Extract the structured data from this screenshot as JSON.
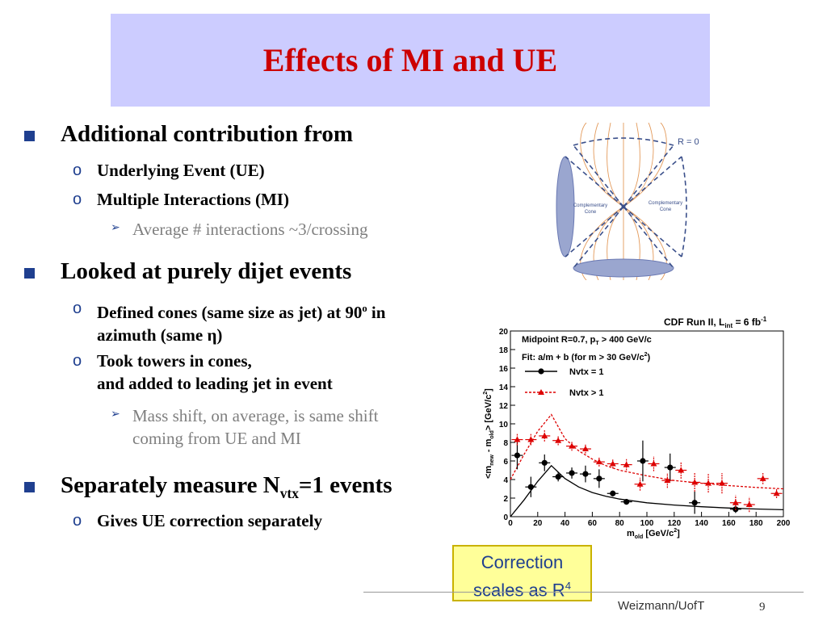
{
  "slide": {
    "title": "Effects of MI and UE",
    "footer": "Weizmann/UofT",
    "page_number": "9"
  },
  "bullets": {
    "b1": {
      "text": "Additional contribution from",
      "sub1": "Underlying Event (UE)",
      "sub2": "Multiple Interactions (MI)",
      "sub2_detail": "Average # interactions ~3/crossing"
    },
    "b2": {
      "text": "Looked at purely dijet events",
      "sub1_a": "Defined cones (same size as jet) at 90",
      "sub1_sup": "o",
      "sub1_b": " in",
      "sub1_line2": "azimuth (same η)",
      "sub2_line1": "Took towers in cones,",
      "sub2_line2": "and added to leading jet in event",
      "detail_line1": "Mass shift, on average, is same shift",
      "detail_line2": "coming from UE and MI"
    },
    "b3": {
      "text_a": "Separately measure N",
      "text_sub": "vtx",
      "text_b": "=1 events",
      "sub1": "Gives UE correction separately"
    }
  },
  "markers": {
    "square": "■",
    "circle": "o",
    "arrow": "➢"
  },
  "cone_diagram": {
    "r_label": "R = 0",
    "left_label_1": "Complementary",
    "left_label_2": "Cone",
    "right_label_1": "Complementary",
    "right_label_2": "Cone"
  },
  "note": {
    "line1": "Correction",
    "line2_a": "scales as R",
    "line2_sup": "4"
  },
  "colors": {
    "title": "#cc0000",
    "title_bg": "#ccccff",
    "bullet_marker": "#1f3f8f",
    "note_bg": "#ffff99",
    "series_black": "#000000",
    "series_red": "#dd0000"
  },
  "chart_data": {
    "type": "scatter",
    "header": "CDF Run II, L",
    "header_sub": "int",
    "header_rest": " = 6 fb",
    "header_sup": "-1",
    "info_line1": "Midpoint R=0.7, p",
    "info_line1_sub": "T",
    "info_line1_rest": " > 400 GeV/c",
    "info_line2": "Fit: a/m + b (for m > 30 GeV/c",
    "info_line2_sup": "2",
    "info_line2_rest": ")",
    "xlabel": "m",
    "xlabel_sub": "old",
    "xlabel_rest": " [GeV/c",
    "xlabel_sup": "2",
    "xlabel_end": "]",
    "ylabel": "<m",
    "ylabel_sub1": "new",
    "ylabel_mid": " - m",
    "ylabel_sub2": "old",
    "ylabel_rest": "> [GeV/c",
    "ylabel_sup": "2",
    "ylabel_end": "]",
    "xlim": [
      0,
      200
    ],
    "ylim": [
      0,
      20
    ],
    "xticks": [
      "0",
      "20",
      "40",
      "60",
      "80",
      "100",
      "120",
      "140",
      "160",
      "180",
      "200"
    ],
    "yticks": [
      "0",
      "2",
      "4",
      "6",
      "8",
      "10",
      "12",
      "14",
      "16",
      "18",
      "20"
    ],
    "legend_position": "top-left",
    "series": [
      {
        "name": "Nvtx = 1",
        "color": "#000000",
        "marker": "circle",
        "points": [
          {
            "x": 5,
            "y": 6.6,
            "ey": 1.5
          },
          {
            "x": 15,
            "y": 3.2,
            "ey": 1.1
          },
          {
            "x": 25,
            "y": 5.8,
            "ey": 0.9
          },
          {
            "x": 35,
            "y": 4.3,
            "ey": 0.5
          },
          {
            "x": 45,
            "y": 4.7,
            "ey": 0.6
          },
          {
            "x": 55,
            "y": 4.6,
            "ey": 0.9
          },
          {
            "x": 65,
            "y": 4.1,
            "ey": 1.0
          },
          {
            "x": 75,
            "y": 2.5,
            "ey": 0.3
          },
          {
            "x": 85,
            "y": 1.6,
            "ey": 0.3
          },
          {
            "x": 97,
            "y": 6.0,
            "ey": 2.2
          },
          {
            "x": 117,
            "y": 5.3,
            "ey": 1.5
          },
          {
            "x": 135,
            "y": 1.5,
            "ey": 1.2
          },
          {
            "x": 165,
            "y": 0.8,
            "ey": 0.4
          }
        ],
        "fit": [
          [
            0,
            0
          ],
          [
            10,
            1.8
          ],
          [
            20,
            3.8
          ],
          [
            30,
            5.5
          ],
          [
            40,
            4.1
          ],
          [
            50,
            3.2
          ],
          [
            60,
            2.6
          ],
          [
            70,
            2.2
          ],
          [
            80,
            1.9
          ],
          [
            100,
            1.5
          ],
          [
            120,
            1.25
          ],
          [
            140,
            1.07
          ],
          [
            160,
            0.93
          ],
          [
            180,
            0.83
          ],
          [
            200,
            0.75
          ]
        ]
      },
      {
        "name": "Nvtx > 1",
        "color": "#dd0000",
        "marker": "triangle",
        "points": [
          {
            "x": 5,
            "y": 8.3,
            "ey": 0.6
          },
          {
            "x": 15,
            "y": 8.3,
            "ey": 0.6
          },
          {
            "x": 25,
            "y": 8.7,
            "ey": 0.6
          },
          {
            "x": 35,
            "y": 8.2,
            "ey": 0.5
          },
          {
            "x": 45,
            "y": 7.6,
            "ey": 0.5
          },
          {
            "x": 55,
            "y": 7.3,
            "ey": 0.5
          },
          {
            "x": 65,
            "y": 5.9,
            "ey": 0.5
          },
          {
            "x": 75,
            "y": 5.7,
            "ey": 0.5
          },
          {
            "x": 85,
            "y": 5.6,
            "ey": 0.6
          },
          {
            "x": 95,
            "y": 3.5,
            "ey": 0.7
          },
          {
            "x": 105,
            "y": 5.7,
            "ey": 0.8
          },
          {
            "x": 115,
            "y": 3.9,
            "ey": 0.8
          },
          {
            "x": 125,
            "y": 5.0,
            "ey": 0.9
          },
          {
            "x": 135,
            "y": 3.7,
            "ey": 1.0
          },
          {
            "x": 145,
            "y": 3.6,
            "ey": 1.0
          },
          {
            "x": 155,
            "y": 3.6,
            "ey": 1.1
          },
          {
            "x": 165,
            "y": 1.5,
            "ey": 0.8
          },
          {
            "x": 175,
            "y": 1.3,
            "ey": 0.8
          },
          {
            "x": 185,
            "y": 4.1,
            "ey": 0.6
          },
          {
            "x": 195,
            "y": 2.5,
            "ey": 0.5
          }
        ],
        "fit": [
          [
            0,
            4
          ],
          [
            10,
            6.7
          ],
          [
            20,
            9.2
          ],
          [
            30,
            11
          ],
          [
            40,
            8.4
          ],
          [
            50,
            7.1
          ],
          [
            60,
            6.2
          ],
          [
            70,
            5.5
          ],
          [
            80,
            5.0
          ],
          [
            100,
            4.4
          ],
          [
            120,
            3.9
          ],
          [
            140,
            3.6
          ],
          [
            160,
            3.35
          ],
          [
            180,
            3.15
          ],
          [
            200,
            3.0
          ]
        ]
      }
    ]
  }
}
